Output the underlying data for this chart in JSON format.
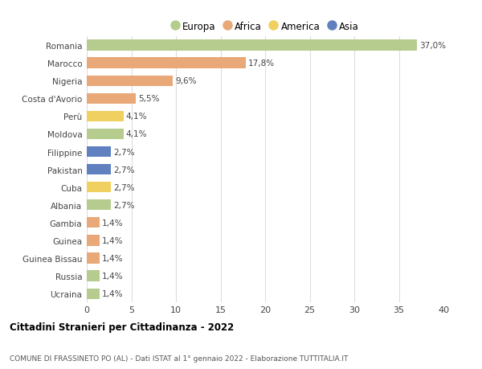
{
  "countries": [
    "Romania",
    "Marocco",
    "Nigeria",
    "Costa d'Avorio",
    "Perù",
    "Moldova",
    "Filippine",
    "Pakistan",
    "Cuba",
    "Albania",
    "Gambia",
    "Guinea",
    "Guinea Bissau",
    "Russia",
    "Ucraina"
  ],
  "values": [
    37.0,
    17.8,
    9.6,
    5.5,
    4.1,
    4.1,
    2.7,
    2.7,
    2.7,
    2.7,
    1.4,
    1.4,
    1.4,
    1.4,
    1.4
  ],
  "labels": [
    "37,0%",
    "17,8%",
    "9,6%",
    "5,5%",
    "4,1%",
    "4,1%",
    "2,7%",
    "2,7%",
    "2,7%",
    "2,7%",
    "1,4%",
    "1,4%",
    "1,4%",
    "1,4%",
    "1,4%"
  ],
  "continents": [
    "Europa",
    "Africa",
    "Africa",
    "Africa",
    "America",
    "Europa",
    "Asia",
    "Asia",
    "America",
    "Europa",
    "Africa",
    "Africa",
    "Africa",
    "Europa",
    "Europa"
  ],
  "colors": {
    "Europa": "#b5cc8e",
    "Africa": "#e8a878",
    "America": "#f0d060",
    "Asia": "#6080c0"
  },
  "xlim": [
    0,
    40
  ],
  "xticks": [
    0,
    5,
    10,
    15,
    20,
    25,
    30,
    35,
    40
  ],
  "title": "Cittadini Stranieri per Cittadinanza - 2022",
  "subtitle": "COMUNE DI FRASSINETO PO (AL) - Dati ISTAT al 1° gennaio 2022 - Elaborazione TUTTITALIA.IT",
  "bg_color": "#ffffff",
  "grid_color": "#dddddd",
  "bar_height": 0.6,
  "legend_order": [
    "Europa",
    "Africa",
    "America",
    "Asia"
  ],
  "legend_colors": {
    "Europa": "#b5cc8e",
    "Africa": "#e8a878",
    "America": "#f0d060",
    "Asia": "#6080c0"
  }
}
